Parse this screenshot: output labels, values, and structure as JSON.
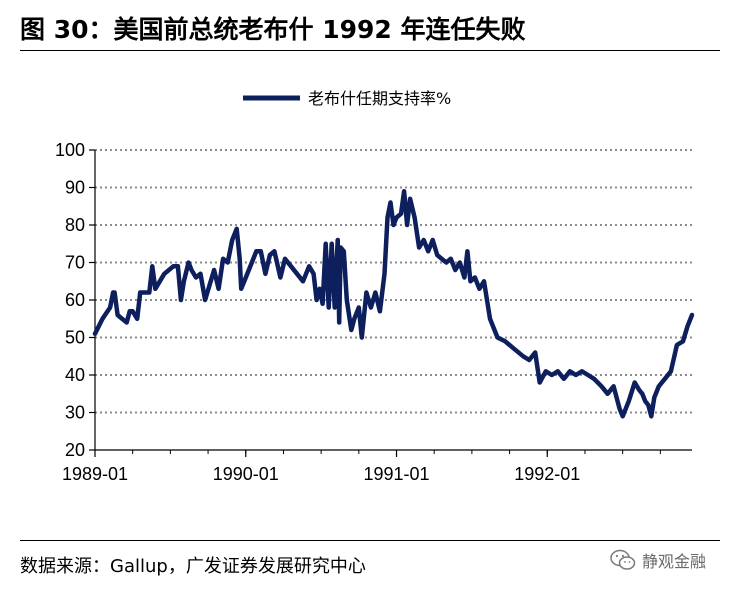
{
  "header": {
    "title": "图 30：美国前总统老布什 1992 年连任失败"
  },
  "footer": {
    "source": "数据来源：Gallup，广发证券发展研究中心",
    "watermark": "静观金融"
  },
  "icons": {
    "watermark_icon": "wechat-icon"
  },
  "chart_data": {
    "type": "line",
    "title": "",
    "xlabel": "",
    "ylabel": "",
    "ylim": [
      20,
      100
    ],
    "yticks": [
      20,
      30,
      40,
      50,
      60,
      70,
      80,
      90,
      100
    ],
    "xlim": [
      1989.0,
      1992.96
    ],
    "xticks": [
      {
        "x": 1989.0,
        "label": "1989-01"
      },
      {
        "x": 1990.0,
        "label": "1990-01"
      },
      {
        "x": 1991.0,
        "label": "1991-01"
      },
      {
        "x": 1992.0,
        "label": "1992-01"
      }
    ],
    "grid": "horizontal-dotted",
    "legend": "top-center",
    "series": [
      {
        "name": "老布什任期支持率%",
        "color": "#0d1f5c",
        "points": [
          [
            1989.0,
            51
          ],
          [
            1989.05,
            55
          ],
          [
            1989.1,
            58
          ],
          [
            1989.12,
            62
          ],
          [
            1989.13,
            62
          ],
          [
            1989.15,
            56
          ],
          [
            1989.18,
            55
          ],
          [
            1989.21,
            54
          ],
          [
            1989.23,
            57
          ],
          [
            1989.25,
            57
          ],
          [
            1989.28,
            55
          ],
          [
            1989.3,
            62
          ],
          [
            1989.34,
            62
          ],
          [
            1989.36,
            62
          ],
          [
            1989.38,
            69
          ],
          [
            1989.4,
            63
          ],
          [
            1989.43,
            65
          ],
          [
            1989.46,
            67
          ],
          [
            1989.49,
            68
          ],
          [
            1989.52,
            69
          ],
          [
            1989.55,
            69
          ],
          [
            1989.57,
            60
          ],
          [
            1989.59,
            65
          ],
          [
            1989.62,
            70
          ],
          [
            1989.64,
            68
          ],
          [
            1989.67,
            66
          ],
          [
            1989.7,
            67
          ],
          [
            1989.73,
            60
          ],
          [
            1989.76,
            64
          ],
          [
            1989.79,
            68
          ],
          [
            1989.82,
            63
          ],
          [
            1989.85,
            71
          ],
          [
            1989.88,
            70
          ],
          [
            1989.91,
            76
          ],
          [
            1989.94,
            79
          ],
          [
            1989.96,
            71
          ],
          [
            1989.97,
            63
          ],
          [
            1990.0,
            66
          ],
          [
            1990.03,
            69
          ],
          [
            1990.07,
            73
          ],
          [
            1990.1,
            73
          ],
          [
            1990.13,
            67
          ],
          [
            1990.16,
            72
          ],
          [
            1990.19,
            73
          ],
          [
            1990.23,
            66
          ],
          [
            1990.26,
            71
          ],
          [
            1990.3,
            69
          ],
          [
            1990.34,
            67
          ],
          [
            1990.38,
            65
          ],
          [
            1990.42,
            69
          ],
          [
            1990.45,
            67
          ],
          [
            1990.47,
            60
          ],
          [
            1990.49,
            63
          ],
          [
            1990.51,
            59
          ],
          [
            1990.53,
            75
          ],
          [
            1990.55,
            58
          ],
          [
            1990.57,
            75
          ],
          [
            1990.59,
            58
          ],
          [
            1990.61,
            76
          ],
          [
            1990.62,
            54
          ],
          [
            1990.63,
            74
          ],
          [
            1990.65,
            73
          ],
          [
            1990.67,
            60
          ],
          [
            1990.7,
            52
          ],
          [
            1990.72,
            55
          ],
          [
            1990.75,
            58
          ],
          [
            1990.77,
            50
          ],
          [
            1990.8,
            62
          ],
          [
            1990.83,
            58
          ],
          [
            1990.86,
            62
          ],
          [
            1990.89,
            57
          ],
          [
            1990.92,
            67
          ],
          [
            1990.94,
            82
          ],
          [
            1990.96,
            86
          ],
          [
            1990.98,
            80
          ],
          [
            1991.0,
            82
          ],
          [
            1991.03,
            83
          ],
          [
            1991.05,
            89
          ],
          [
            1991.07,
            80
          ],
          [
            1991.09,
            87
          ],
          [
            1991.12,
            82
          ],
          [
            1991.15,
            74
          ],
          [
            1991.18,
            76
          ],
          [
            1991.21,
            73
          ],
          [
            1991.24,
            76
          ],
          [
            1991.27,
            72
          ],
          [
            1991.3,
            71
          ],
          [
            1991.33,
            70
          ],
          [
            1991.36,
            71
          ],
          [
            1991.39,
            68
          ],
          [
            1991.42,
            70
          ],
          [
            1991.45,
            66
          ],
          [
            1991.47,
            73
          ],
          [
            1991.49,
            65
          ],
          [
            1991.52,
            66
          ],
          [
            1991.55,
            63
          ],
          [
            1991.58,
            65
          ],
          [
            1991.62,
            55
          ],
          [
            1991.67,
            50
          ],
          [
            1991.72,
            49
          ],
          [
            1991.78,
            47
          ],
          [
            1991.84,
            45
          ],
          [
            1991.88,
            44
          ],
          [
            1991.92,
            46
          ],
          [
            1991.95,
            38
          ],
          [
            1991.99,
            41
          ],
          [
            1992.03,
            40
          ],
          [
            1992.07,
            41
          ],
          [
            1992.11,
            39
          ],
          [
            1992.15,
            41
          ],
          [
            1992.19,
            40
          ],
          [
            1992.23,
            41
          ],
          [
            1992.27,
            40
          ],
          [
            1992.31,
            39
          ],
          [
            1992.36,
            37
          ],
          [
            1992.4,
            35
          ],
          [
            1992.44,
            37
          ],
          [
            1992.48,
            31
          ],
          [
            1992.5,
            29
          ],
          [
            1992.54,
            33
          ],
          [
            1992.58,
            38
          ],
          [
            1992.61,
            36
          ],
          [
            1992.63,
            35
          ],
          [
            1992.65,
            33
          ],
          [
            1992.67,
            32
          ],
          [
            1992.69,
            29
          ],
          [
            1992.71,
            34
          ],
          [
            1992.74,
            37
          ],
          [
            1992.78,
            39
          ],
          [
            1992.82,
            41
          ],
          [
            1992.86,
            48
          ],
          [
            1992.9,
            49
          ],
          [
            1992.93,
            53
          ],
          [
            1992.96,
            56
          ]
        ]
      }
    ]
  }
}
